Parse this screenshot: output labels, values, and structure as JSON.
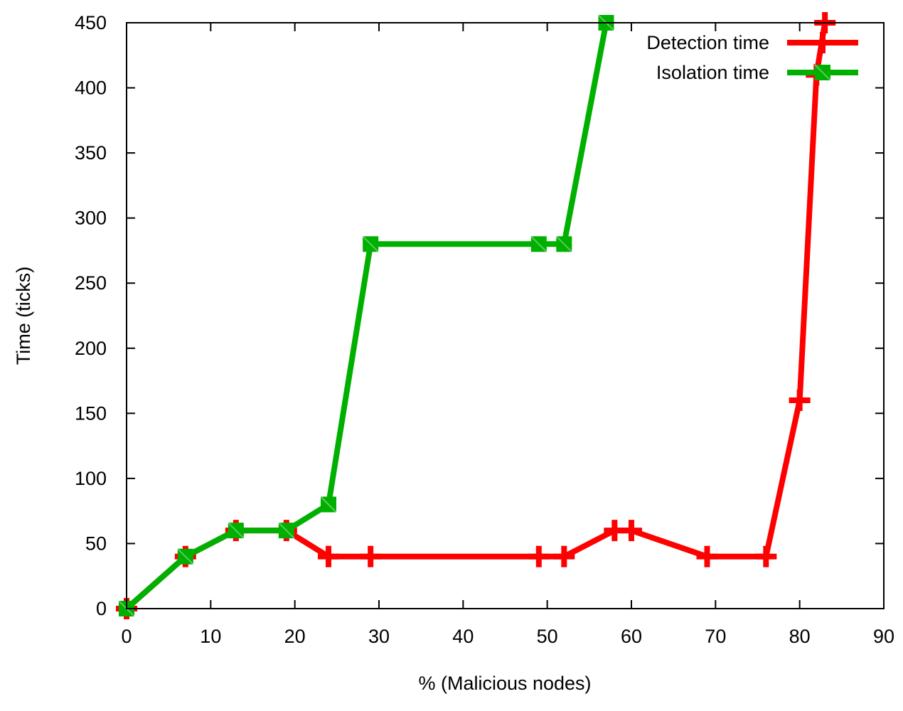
{
  "chart_data": {
    "type": "line",
    "title": "",
    "xlabel": "% (Malicious nodes)",
    "ylabel": "Time (ticks)",
    "xlim": [
      0,
      90
    ],
    "ylim": [
      0,
      450
    ],
    "xticks": [
      0,
      10,
      20,
      30,
      40,
      50,
      60,
      70,
      80,
      90
    ],
    "yticks": [
      0,
      50,
      100,
      150,
      200,
      250,
      300,
      350,
      400,
      450
    ],
    "grid": false,
    "legend_position": "top-right",
    "series": [
      {
        "name": "Detection time",
        "color": "#ff0000",
        "marker": "plus",
        "points": [
          {
            "x": 0,
            "y": 0
          },
          {
            "x": 7,
            "y": 40
          },
          {
            "x": 13,
            "y": 60
          },
          {
            "x": 19,
            "y": 60
          },
          {
            "x": 24,
            "y": 40
          },
          {
            "x": 29,
            "y": 40
          },
          {
            "x": 49,
            "y": 40
          },
          {
            "x": 52,
            "y": 40
          },
          {
            "x": 58,
            "y": 60
          },
          {
            "x": 60,
            "y": 60
          },
          {
            "x": 69,
            "y": 40
          },
          {
            "x": 76,
            "y": 40
          },
          {
            "x": 80,
            "y": 160
          },
          {
            "x": 82,
            "y": 410
          },
          {
            "x": 83,
            "y": 450
          }
        ]
      },
      {
        "name": "Isolation time",
        "color": "#00b000",
        "marker": "cross-box",
        "points": [
          {
            "x": 0,
            "y": 0
          },
          {
            "x": 7,
            "y": 40
          },
          {
            "x": 13,
            "y": 60
          },
          {
            "x": 19,
            "y": 60
          },
          {
            "x": 24,
            "y": 80
          },
          {
            "x": 29,
            "y": 280
          },
          {
            "x": 49,
            "y": 280
          },
          {
            "x": 52,
            "y": 280
          },
          {
            "x": 57,
            "y": 450
          }
        ]
      }
    ]
  }
}
